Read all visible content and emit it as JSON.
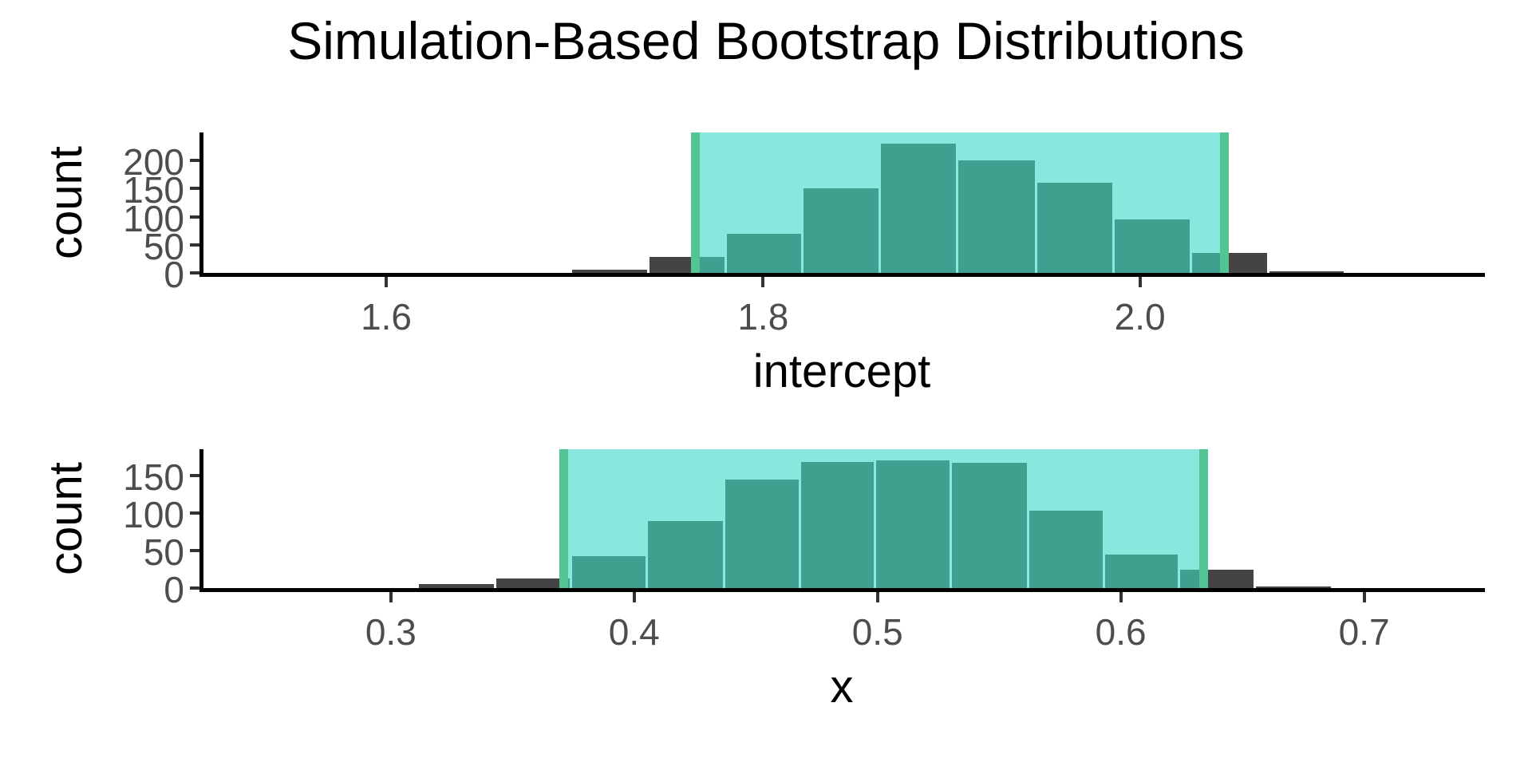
{
  "title": "Simulation-Based Bootstrap Distributions",
  "colors": {
    "bar_inside_ci": "#3FA08F",
    "bar_outside_ci": "#444444",
    "ci_shade_fill": "#88E8DE",
    "ci_line": "#54C494",
    "axis_line": "#000000",
    "tick_label": "#4D4D4D",
    "text": "#000000"
  },
  "chart_data": [
    {
      "type": "bar",
      "subtype": "histogram",
      "panel": "intercept",
      "title": "",
      "xlabel": "intercept",
      "ylabel": "count",
      "x_ticks": [
        1.6,
        1.8,
        2.0
      ],
      "y_ticks": [
        0,
        50,
        100,
        150,
        200
      ],
      "xlim": [
        1.503,
        2.181
      ],
      "ylim": [
        0,
        250
      ],
      "grid": "off",
      "legend": "none",
      "bin_edges": [
        1.698,
        1.739,
        1.78,
        1.821,
        1.862,
        1.903,
        1.945,
        1.986,
        2.027,
        2.068,
        2.109
      ],
      "counts": [
        5,
        28,
        70,
        150,
        230,
        200,
        160,
        95,
        35,
        3
      ],
      "ci": {
        "lower": 1.764,
        "upper": 2.045
      }
    },
    {
      "type": "bar",
      "subtype": "histogram",
      "panel": "x",
      "title": "",
      "xlabel": "x",
      "ylabel": "count",
      "x_ticks": [
        0.3,
        0.4,
        0.5,
        0.6,
        0.7
      ],
      "y_ticks": [
        0,
        50,
        100,
        150
      ],
      "xlim": [
        0.223,
        0.748
      ],
      "ylim": [
        0,
        185
      ],
      "grid": "off",
      "legend": "none",
      "bin_edges": [
        0.311,
        0.343,
        0.374,
        0.405,
        0.437,
        0.468,
        0.499,
        0.53,
        0.562,
        0.593,
        0.624,
        0.655,
        0.687
      ],
      "counts": [
        5,
        13,
        43,
        89,
        145,
        168,
        170,
        167,
        103,
        45,
        24,
        2
      ],
      "ci": {
        "lower": 0.371,
        "upper": 0.634
      }
    }
  ]
}
